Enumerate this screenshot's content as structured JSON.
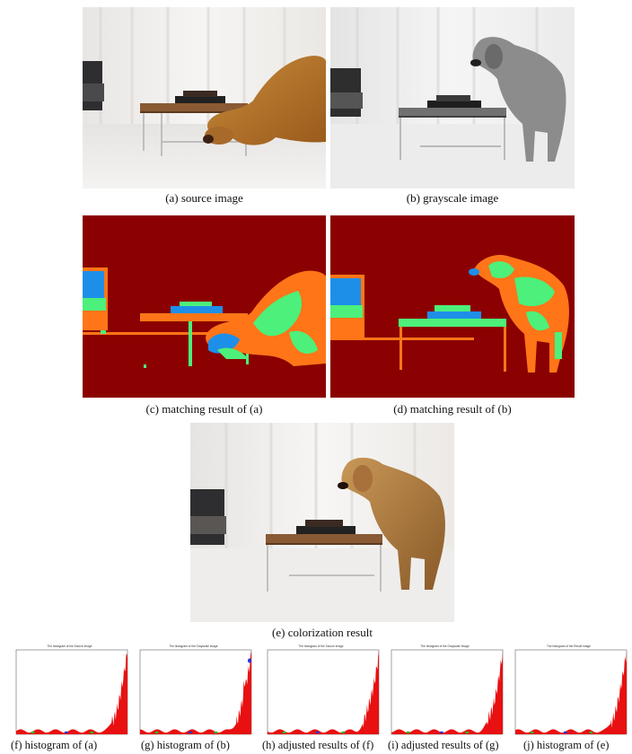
{
  "figure": {
    "captions": {
      "a": "(a)  source image",
      "b": "(b) grayscale image",
      "c": "(c)  matching result of (a)",
      "d": "(d) matching result of (b)",
      "e": "(e) colorization result",
      "f": "(f)  histogram of (a)",
      "g": "(g)  histogram of (b)",
      "h": "(h)  adjusted results of (f)",
      "i": "(i) adjusted results of (g)",
      "j": "(j) histogram of (e)"
    },
    "histogram_titles": {
      "f": "The histogram of the Source Image",
      "g": "The histogram of the Grayscale Image",
      "h": "The histogram of the Source Image",
      "i": "The histogram of the Grayscale Image",
      "j": "The histogram of the Result Image"
    },
    "colors": {
      "segment_background": "#8b0000",
      "segment_orange": "#ff7518",
      "segment_green": "#4cf07a",
      "segment_blue": "#1e8fe8",
      "histogram_fill": "#e81010",
      "histogram_marker_green": "#22bb22",
      "histogram_marker_blue": "#2233dd"
    }
  },
  "chart_data": [
    {
      "type": "area",
      "panel": "f",
      "title": "The histogram of the Source Image",
      "xlim": [
        0,
        255
      ]
    },
    {
      "type": "area",
      "panel": "g",
      "title": "The histogram of the Grayscale Image",
      "xlim": [
        0,
        255
      ]
    },
    {
      "type": "area",
      "panel": "h",
      "title": "The histogram of the Source Image",
      "xlim": [
        0,
        255
      ]
    },
    {
      "type": "area",
      "panel": "i",
      "title": "The histogram of the Grayscale Image",
      "xlim": [
        0,
        255
      ]
    },
    {
      "type": "area",
      "panel": "j",
      "title": "The histogram of the Result Image",
      "xlim": [
        0,
        255
      ]
    }
  ]
}
